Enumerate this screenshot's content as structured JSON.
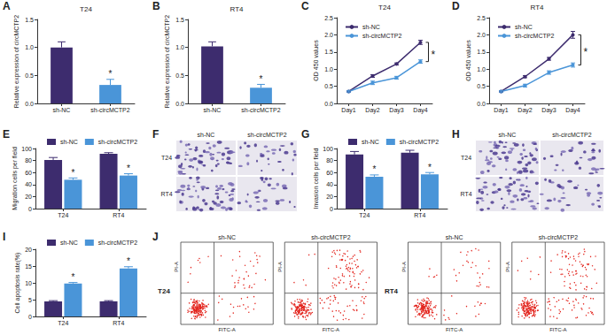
{
  "chart_data": [
    {
      "panel": "A",
      "type": "bar",
      "title": "T24",
      "ylabel": "Relative expression of circMCTP2",
      "categories": [
        "sh-NC",
        "sh-circMCTP2"
      ],
      "values": [
        1.0,
        0.33
      ],
      "errors": [
        0.1,
        0.1
      ],
      "colors": [
        "#3d2c6e",
        "#4a95d8"
      ],
      "ylim": [
        0,
        1.5
      ],
      "yticks": [
        {
          "value": 0,
          "label": "0.0"
        },
        0.5,
        {
          "value": 1,
          "label": "1.0"
        },
        1.5
      ],
      "annotations": [
        {
          "text": "*",
          "category": "sh-circMCTP2"
        }
      ]
    },
    {
      "panel": "B",
      "type": "bar",
      "title": "RT4",
      "ylabel": "Relative expression of circMCTP2",
      "categories": [
        "sh-NC",
        "sh-circMCTP2"
      ],
      "values": [
        1.02,
        0.28
      ],
      "errors": [
        0.08,
        0.06
      ],
      "colors": [
        "#3d2c6e",
        "#4a95d8"
      ],
      "ylim": [
        0,
        1.5
      ],
      "yticks": [
        {
          "value": 0,
          "label": "0.0"
        },
        0.5,
        {
          "value": 1,
          "label": "1.0"
        },
        1.5
      ],
      "annotations": [
        {
          "text": "*",
          "category": "sh-circMCTP2"
        }
      ]
    },
    {
      "panel": "C",
      "type": "line",
      "title": "T24",
      "ylabel": "OD 450 values",
      "categories": [
        "Day1",
        "Day2",
        "Day3",
        "Day4"
      ],
      "marker": "circle",
      "legend": "top-left",
      "series": [
        {
          "name": "sh-NC",
          "color": "#3d2c6e",
          "values": [
            0.35,
            0.8,
            1.15,
            1.78
          ],
          "errors": [
            0.02,
            0.04,
            0.03,
            0.06
          ]
        },
        {
          "name": "sh-circMCTP2",
          "color": "#4a95d8",
          "values": [
            0.35,
            0.6,
            0.75,
            1.22
          ],
          "errors": [
            0.02,
            0.05,
            0.04,
            0.05
          ]
        }
      ],
      "ylim": [
        0,
        2.5
      ],
      "yticks": [
        {
          "value": 0,
          "label": "0.0"
        },
        0.5,
        {
          "value": 1,
          "label": "1.0"
        },
        1.5,
        {
          "value": 2,
          "label": "2.0"
        },
        2.5
      ],
      "annotations": [
        {
          "text": "*",
          "category": "Day4"
        }
      ]
    },
    {
      "panel": "D",
      "type": "line",
      "title": "RT4",
      "ylabel": "OD 450 values",
      "categories": [
        "Day1",
        "Day2",
        "Day3",
        "Day4"
      ],
      "marker": "circle",
      "legend": "top-left",
      "series": [
        {
          "name": "sh-NC",
          "color": "#3d2c6e",
          "values": [
            0.35,
            0.78,
            1.3,
            2.0
          ],
          "errors": [
            0.02,
            0.03,
            0.04,
            0.1
          ]
        },
        {
          "name": "sh-circMCTP2",
          "color": "#4a95d8",
          "values": [
            0.35,
            0.52,
            0.9,
            1.12
          ],
          "errors": [
            0.02,
            0.04,
            0.05,
            0.06
          ]
        }
      ],
      "ylim": [
        0,
        2.5
      ],
      "yticks": [
        {
          "value": 0,
          "label": "0.0"
        },
        0.5,
        {
          "value": 1,
          "label": "1.0"
        },
        1.5,
        {
          "value": 2,
          "label": "2.0"
        },
        2.5
      ],
      "annotations": [
        {
          "text": "*",
          "category": "Day4"
        }
      ]
    },
    {
      "panel": "E",
      "type": "bar",
      "ylabel": "Migration cells per field",
      "categories": [
        "T24",
        "RT4"
      ],
      "legend": "top-left",
      "series": [
        {
          "name": "sh-NC",
          "color": "#3d2c6e",
          "values": [
            81,
            91
          ],
          "errors": [
            4,
            2
          ]
        },
        {
          "name": "sh-circMCTP2",
          "color": "#4a95d8",
          "values": [
            48,
            55
          ],
          "errors": [
            3,
            3
          ]
        }
      ],
      "ylim": [
        0,
        100
      ],
      "yticks": [
        0,
        20,
        40,
        60,
        80,
        100
      ],
      "annotations": [
        {
          "text": "*",
          "category": "T24",
          "series": "sh-circMCTP2"
        },
        {
          "text": "*",
          "category": "RT4",
          "series": "sh-circMCTP2"
        }
      ]
    },
    {
      "panel": "G",
      "type": "bar",
      "ylabel": "Invasion cells per field",
      "categories": [
        "T24",
        "RT4"
      ],
      "legend": "top-left",
      "series": [
        {
          "name": "sh-NC",
          "color": "#3d2c6e",
          "values": [
            90,
            93
          ],
          "errors": [
            5,
            4
          ]
        },
        {
          "name": "sh-circMCTP2",
          "color": "#4a95d8",
          "values": [
            53,
            57
          ],
          "errors": [
            3,
            3
          ]
        }
      ],
      "ylim": [
        0,
        100
      ],
      "yticks": [
        0,
        20,
        40,
        60,
        80,
        100
      ],
      "annotations": [
        {
          "text": "*",
          "category": "T24",
          "series": "sh-circMCTP2"
        },
        {
          "text": "*",
          "category": "RT4",
          "series": "sh-circMCTP2"
        }
      ]
    },
    {
      "panel": "I",
      "type": "bar",
      "ylabel": "Cell apoptosis rate(%)",
      "categories": [
        "T24",
        "RT4"
      ],
      "legend": "top-left",
      "series": [
        {
          "name": "sh-NC",
          "color": "#3d2c6e",
          "values": [
            4.5,
            4.5
          ],
          "errors": [
            0.2,
            0.2
          ]
        },
        {
          "name": "sh-circMCTP2",
          "color": "#4a95d8",
          "values": [
            9.8,
            14.3
          ],
          "errors": [
            0.3,
            0.5
          ]
        }
      ],
      "ylim": [
        0,
        20
      ],
      "yticks": [
        0,
        5,
        10,
        15,
        20
      ],
      "annotations": [
        {
          "text": "*",
          "category": "T24",
          "series": "sh-circMCTP2"
        },
        {
          "text": "*",
          "category": "RT4",
          "series": "sh-circMCTP2"
        }
      ]
    }
  ],
  "images": [
    {
      "panel": "F",
      "type": "micrographs",
      "columns": [
        "sh-NC",
        "sh-circMCTP2"
      ],
      "rows": [
        "T24",
        "RT4"
      ]
    },
    {
      "panel": "H",
      "type": "micrographs",
      "columns": [
        "sh-NC",
        "sh-circMCTP2"
      ],
      "rows": [
        "T24",
        "RT4"
      ]
    },
    {
      "panel": "J",
      "type": "flow_cytometry",
      "xlabel": "FITC-A",
      "ylabel": "PI-A",
      "groups": [
        {
          "row": "T24",
          "columns": [
            "sh-NC",
            "sh-circMCTP2"
          ]
        },
        {
          "row": "RT4",
          "columns": [
            "sh-NC",
            "sh-circMCTP2"
          ]
        }
      ]
    }
  ]
}
